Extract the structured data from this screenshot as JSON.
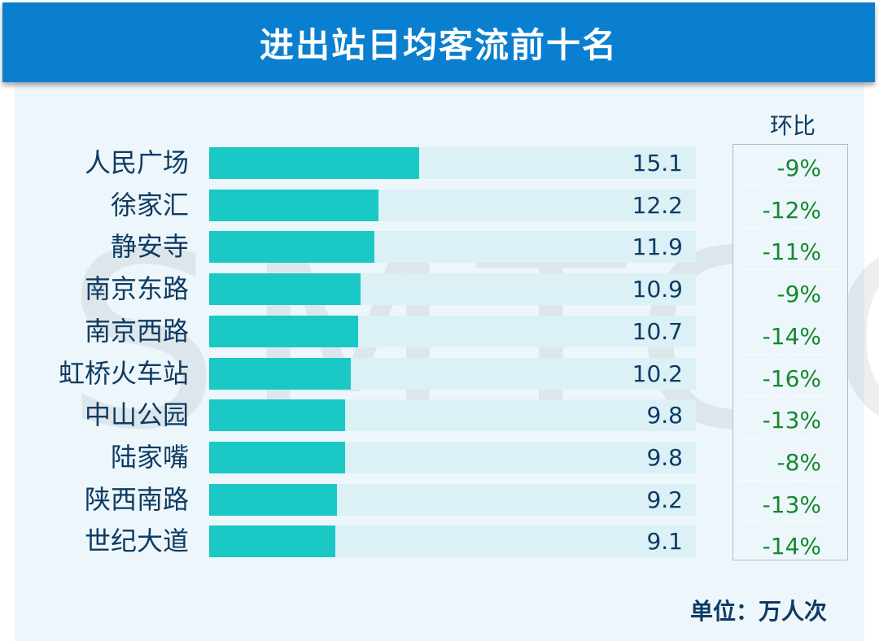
{
  "title": "进出站日均客流前十名",
  "watermark": "SMTCC",
  "mom_header": "环比",
  "unit_label": "单位：万人次",
  "colors": {
    "header": "#0a7fcf",
    "bar": "#1ac8c6",
    "track": "#dbf1f6",
    "mom_text": "#15882f",
    "label_text": "#0f3b63"
  },
  "chart_data": {
    "type": "bar",
    "orientation": "horizontal",
    "categories": [
      "人民广场",
      "徐家汇",
      "静安寺",
      "南京东路",
      "南京西路",
      "虹桥火车站",
      "中山公园",
      "陆家嘴",
      "陕西南路",
      "世纪大道"
    ],
    "values": [
      15.1,
      12.2,
      11.9,
      10.9,
      10.7,
      10.2,
      9.8,
      9.8,
      9.2,
      9.1
    ],
    "value_labels": [
      "15.1",
      "12.2",
      "11.9",
      "10.9",
      "10.7",
      "10.2",
      "9.8",
      "9.8",
      "9.2",
      "9.1"
    ],
    "mom": [
      "-9%",
      "-12%",
      "-11%",
      "-9%",
      "-14%",
      "-16%",
      "-13%",
      "-8%",
      "-13%",
      "-14%"
    ],
    "title": "进出站日均客流前十名",
    "xlim": [
      0,
      35
    ]
  }
}
